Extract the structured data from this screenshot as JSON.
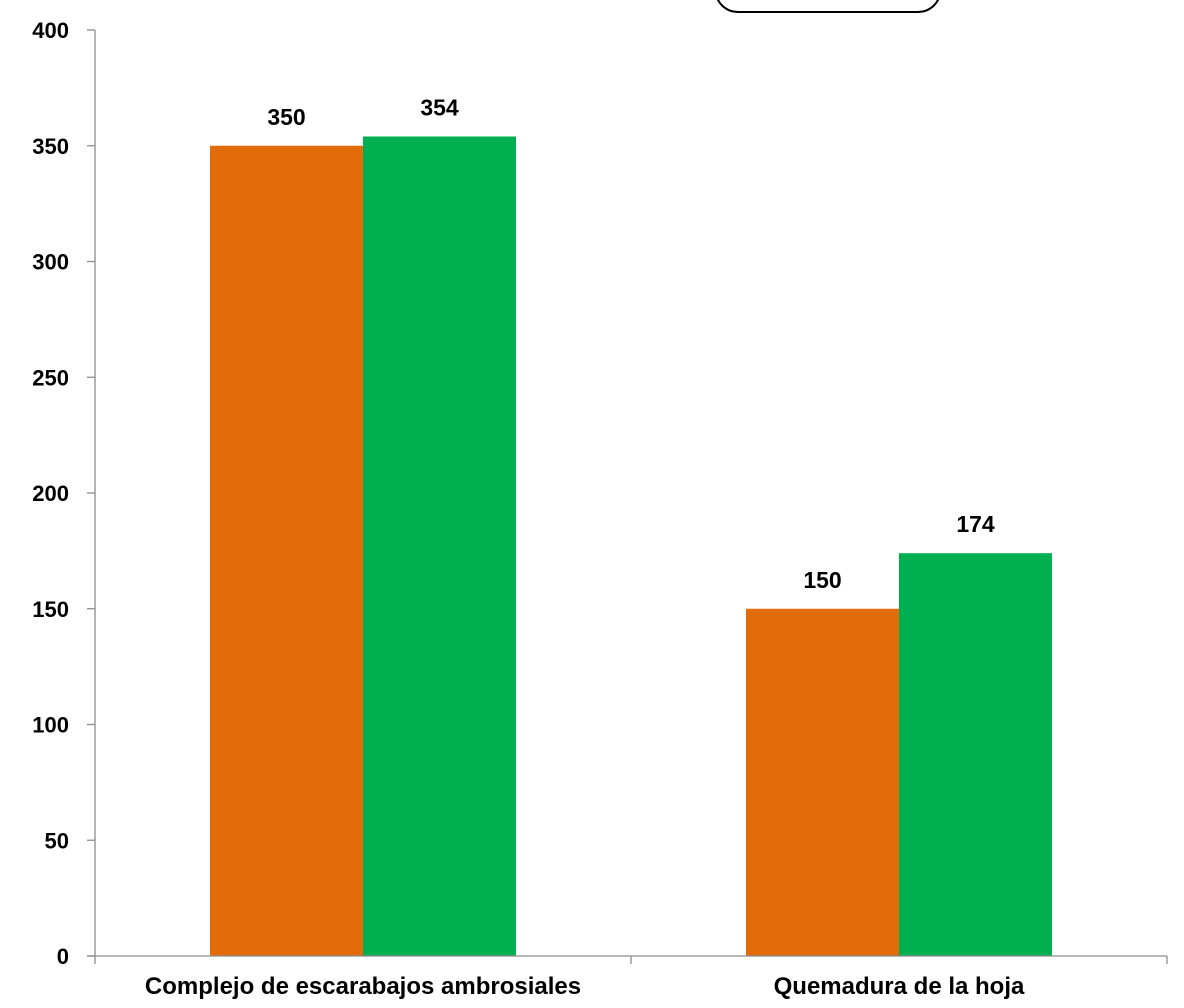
{
  "chart_data": {
    "type": "bar",
    "title": "",
    "xlabel": "",
    "ylabel": "",
    "categories": [
      "Complejo de escarabajos ambrosiales",
      "Quemadura de la hoja"
    ],
    "series": [
      {
        "values": [
          350,
          150
        ],
        "color": "#e36c0a"
      },
      {
        "values": [
          354,
          174
        ],
        "color": "#00b050"
      }
    ],
    "ylim": [
      0,
      400
    ],
    "yticks": [
      0,
      50,
      100,
      150,
      200,
      250,
      300,
      350,
      400
    ],
    "grid": false,
    "legend": "top-center",
    "data_labels": true
  }
}
